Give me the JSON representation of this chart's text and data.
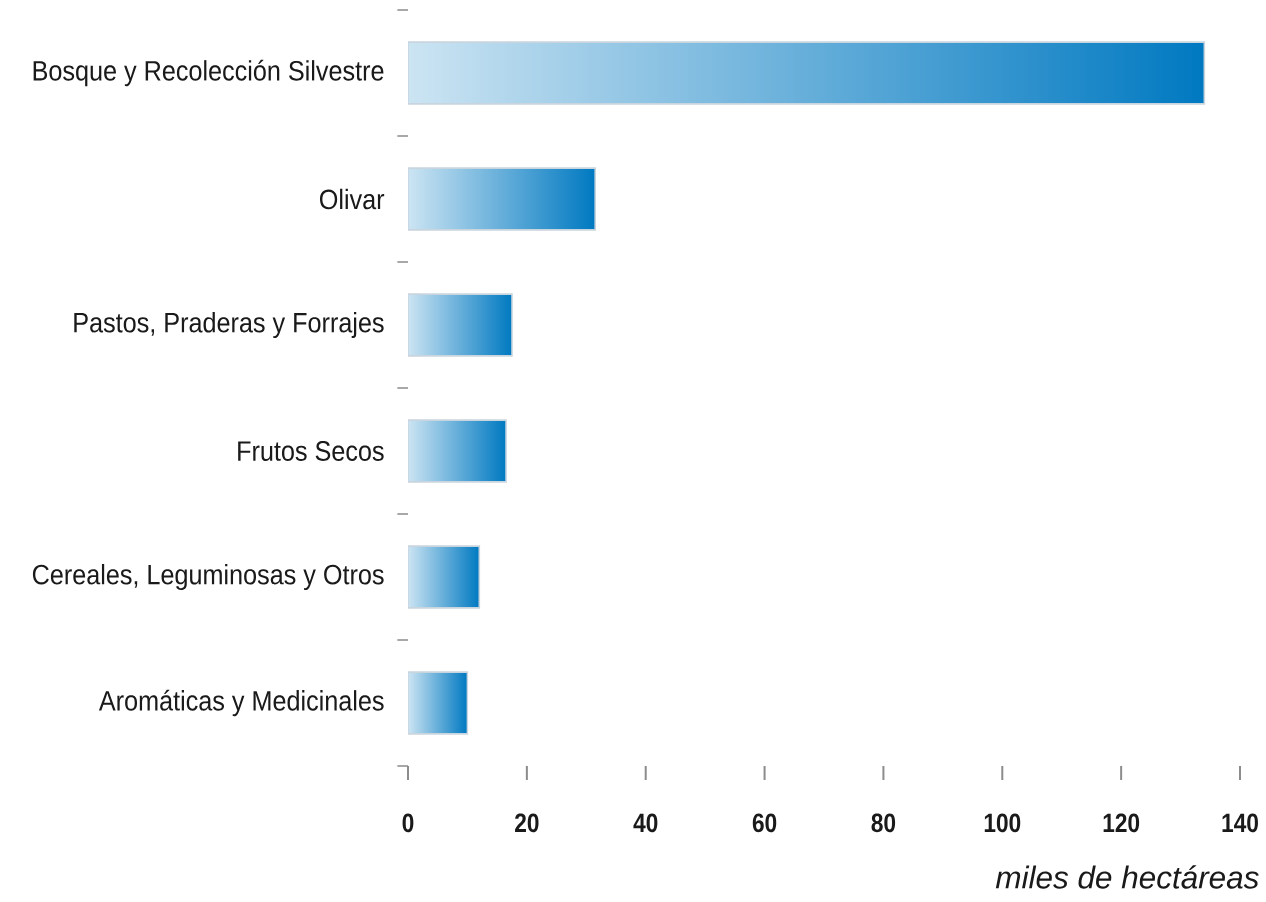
{
  "chart_data": {
    "type": "bar",
    "orientation": "horizontal",
    "xlabel": "miles de hectáreas",
    "categories": [
      "Bosque y Recolección Silvestre",
      "Olivar",
      "Pastos, Praderas y Forrajes",
      "Frutos Secos",
      "Cereales, Leguminosas y Otros",
      "Aromáticas y Medicinales"
    ],
    "values": [
      134,
      31.5,
      17.5,
      16.5,
      12,
      10
    ],
    "color": "#0079c1",
    "xlim": [
      0,
      140
    ],
    "xticks": [
      0,
      20,
      40,
      60,
      80,
      100,
      120,
      140
    ]
  }
}
